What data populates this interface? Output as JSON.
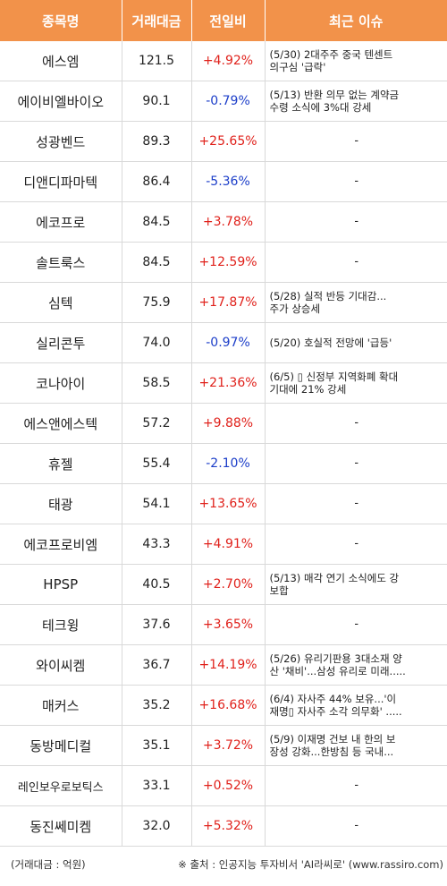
{
  "header": {
    "name": "종목명",
    "volume": "거래대금",
    "change": "전일비",
    "issue": "최근 이슈"
  },
  "rows": [
    {
      "name": "에스엠",
      "volume": "121.5",
      "change": "+4.92%",
      "dir": "up",
      "issue1": "(5/30) 2대주주 중국 텐센트",
      "issue2": "의구심 '급락'"
    },
    {
      "name": "에이비엘바이오",
      "volume": "90.1",
      "change": "-0.79%",
      "dir": "down",
      "issue1": "(5/13) 반환 의무 없는 계약금",
      "issue2": " 수령 소식에 3%대 강세"
    },
    {
      "name": "성광벤드",
      "volume": "89.3",
      "change": "+25.65%",
      "dir": "up",
      "issue1": "-",
      "issue2": ""
    },
    {
      "name": "디앤디파마텍",
      "volume": "86.4",
      "change": "-5.36%",
      "dir": "down",
      "issue1": "-",
      "issue2": ""
    },
    {
      "name": "에코프로",
      "volume": "84.5",
      "change": "+3.78%",
      "dir": "up",
      "issue1": "-",
      "issue2": ""
    },
    {
      "name": "솔트룩스",
      "volume": "84.5",
      "change": "+12.59%",
      "dir": "up",
      "issue1": "-",
      "issue2": ""
    },
    {
      "name": "심텍",
      "volume": "75.9",
      "change": "+17.87%",
      "dir": "up",
      "issue1": "(5/28) 실적 반등 기대감...",
      "issue2": "주가 상승세"
    },
    {
      "name": "실리콘투",
      "volume": "74.0",
      "change": "-0.97%",
      "dir": "down",
      "issue1": "(5/20) 호실적 전망에 '급등'",
      "issue2": ""
    },
    {
      "name": "코나아이",
      "volume": "58.5",
      "change": "+21.36%",
      "dir": "up",
      "issue1": "(6/5) ▯ 신정부 지역화폐 확대",
      "issue2": " 기대에 21% 강세"
    },
    {
      "name": "에스앤에스텍",
      "volume": "57.2",
      "change": "+9.88%",
      "dir": "up",
      "issue1": "-",
      "issue2": ""
    },
    {
      "name": "휴젤",
      "volume": "55.4",
      "change": "-2.10%",
      "dir": "down",
      "issue1": "-",
      "issue2": ""
    },
    {
      "name": "태광",
      "volume": "54.1",
      "change": "+13.65%",
      "dir": "up",
      "issue1": "-",
      "issue2": ""
    },
    {
      "name": "에코프로비엠",
      "volume": "43.3",
      "change": "+4.91%",
      "dir": "up",
      "issue1": "-",
      "issue2": ""
    },
    {
      "name": "HPSP",
      "volume": "40.5",
      "change": "+2.70%",
      "dir": "up",
      "issue1": "(5/13) 매각 연기 소식에도 강",
      "issue2": "보합"
    },
    {
      "name": "테크윙",
      "volume": "37.6",
      "change": "+3.65%",
      "dir": "up",
      "issue1": "-",
      "issue2": ""
    },
    {
      "name": "와이씨켐",
      "volume": "36.7",
      "change": "+14.19%",
      "dir": "up",
      "issue1": "(5/26) 유리기판용 3대소재 양",
      "issue2": "산 '채비'...삼성 유리로 미래....."
    },
    {
      "name": "매커스",
      "volume": "35.2",
      "change": "+16.68%",
      "dir": "up",
      "issue1": "(6/4) 자사주 44% 보유...'이",
      "issue2": "재명▯ 자사주 소각 의무화' ....."
    },
    {
      "name": "동방메디컬",
      "volume": "35.1",
      "change": "+3.72%",
      "dir": "up",
      "issue1": "(5/9) 이재명 건보 내 한의 보",
      "issue2": "장성 강화...한방침 등 국내..."
    },
    {
      "name": "레인보우로보틱스",
      "volume": "33.1",
      "change": "+0.52%",
      "dir": "up",
      "issue1": "-",
      "issue2": ""
    },
    {
      "name": "동진쎄미켐",
      "volume": "32.0",
      "change": "+5.32%",
      "dir": "up",
      "issue1": "-",
      "issue2": ""
    }
  ],
  "footer": {
    "unit": "(거래대금 : 억원)",
    "source": "※ 출처 : 인공지능 투자비서 'AI라씨로' (www.rassiro.com)"
  },
  "colors": {
    "header_bg": "#f2924a",
    "up": "#e0211b",
    "down": "#1c3ec9"
  }
}
